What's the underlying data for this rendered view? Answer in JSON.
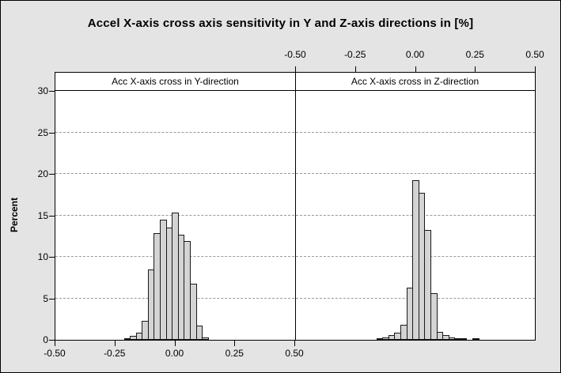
{
  "chart_data": {
    "type": "histogram",
    "title": "Accel X-axis cross axis sensitivity in Y and Z-axis directions in [%]",
    "ylabel": "Percent",
    "ylim": [
      0,
      30
    ],
    "yticks": [
      0,
      5,
      10,
      15,
      20,
      25,
      30
    ],
    "ytick_labels": [
      "0",
      "5",
      "10",
      "15",
      "20",
      "25",
      "30"
    ],
    "xlim": [
      -0.5,
      0.5
    ],
    "xticks": [
      -0.5,
      -0.25,
      0,
      0.25,
      0.5
    ],
    "xtick_labels": [
      "-0.50",
      "-0.25",
      "0.00",
      "0.25",
      "0.50"
    ],
    "bin_width": 0.025,
    "grid": "dashed-horizontal",
    "panels": [
      {
        "label": "Acc X-axis cross in Y-direction",
        "x_axis_position": "bottom",
        "bins": [
          {
            "x": -0.2,
            "pct": 0.2
          },
          {
            "x": -0.175,
            "pct": 0.45
          },
          {
            "x": -0.15,
            "pct": 0.9
          },
          {
            "x": -0.125,
            "pct": 2.3
          },
          {
            "x": -0.1,
            "pct": 8.5
          },
          {
            "x": -0.075,
            "pct": 12.9
          },
          {
            "x": -0.05,
            "pct": 14.5
          },
          {
            "x": -0.025,
            "pct": 13.5
          },
          {
            "x": 0.0,
            "pct": 15.3
          },
          {
            "x": 0.025,
            "pct": 12.7
          },
          {
            "x": 0.05,
            "pct": 11.9
          },
          {
            "x": 0.075,
            "pct": 6.8
          },
          {
            "x": 0.1,
            "pct": 1.7
          },
          {
            "x": 0.125,
            "pct": 0.25
          }
        ]
      },
      {
        "label": "Acc X-axis cross in Z-direction",
        "x_axis_position": "top",
        "bins": [
          {
            "x": -0.15,
            "pct": 0.2
          },
          {
            "x": -0.125,
            "pct": 0.3
          },
          {
            "x": -0.1,
            "pct": 0.55
          },
          {
            "x": -0.075,
            "pct": 0.9
          },
          {
            "x": -0.05,
            "pct": 1.8
          },
          {
            "x": -0.025,
            "pct": 6.3
          },
          {
            "x": 0.0,
            "pct": 19.2
          },
          {
            "x": 0.025,
            "pct": 17.7
          },
          {
            "x": 0.05,
            "pct": 13.2
          },
          {
            "x": 0.075,
            "pct": 5.6
          },
          {
            "x": 0.1,
            "pct": 1.0
          },
          {
            "x": 0.125,
            "pct": 0.55
          },
          {
            "x": 0.15,
            "pct": 0.3
          },
          {
            "x": 0.175,
            "pct": 0.2
          },
          {
            "x": 0.2,
            "pct": 0.1
          },
          {
            "x": 0.25,
            "pct": 0.15
          }
        ]
      }
    ],
    "colors": {
      "background": "#e4e4e4",
      "plot_background": "#ffffff",
      "bar_fill": "#d4d4d4",
      "bar_border": "#1a1a1a",
      "grid": "#999999",
      "axis": "#000000",
      "text": "#000000"
    }
  }
}
